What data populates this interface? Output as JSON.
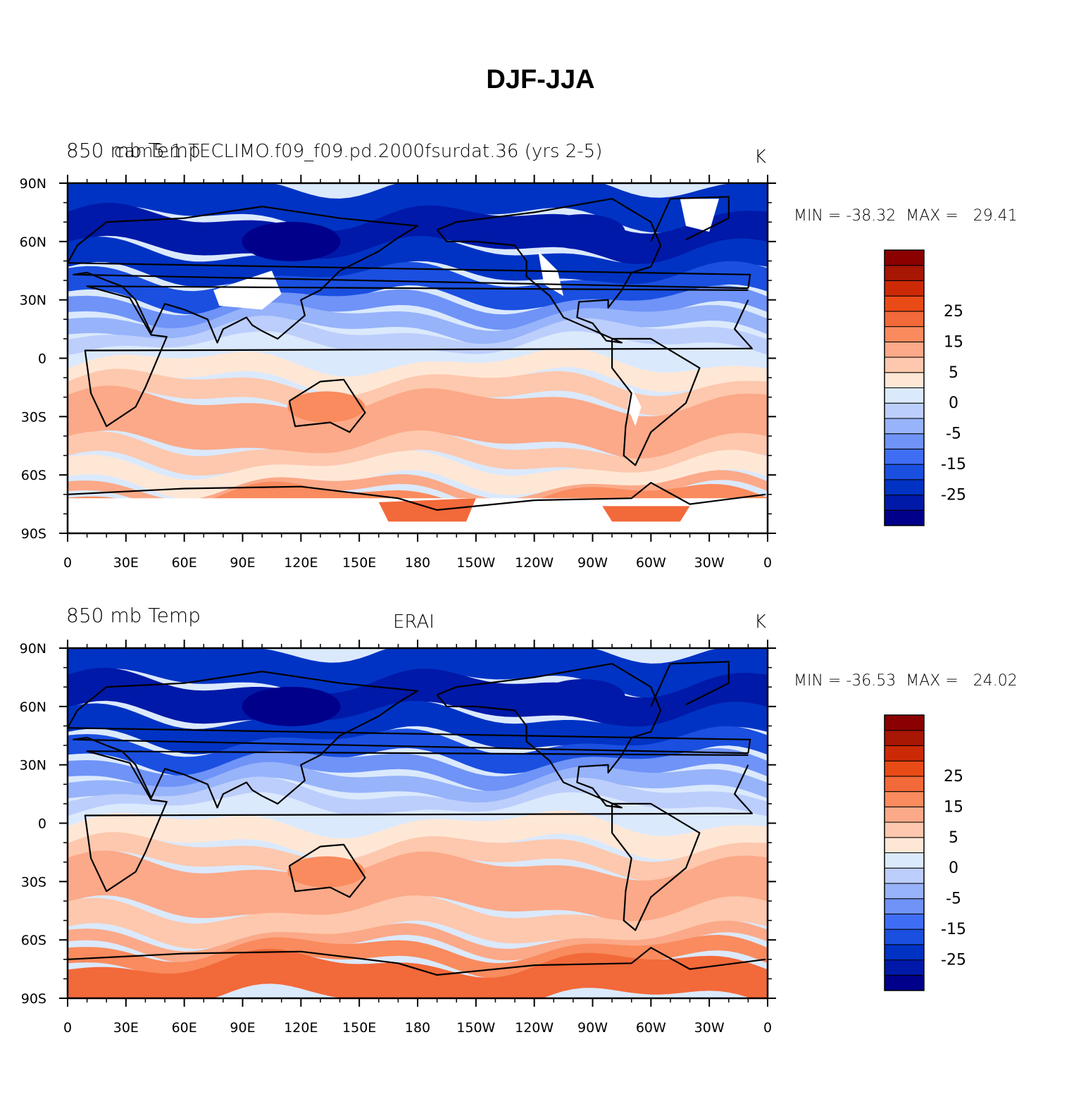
{
  "title": "DJF-JJA",
  "colorbar": {
    "colors": [
      "#00008b",
      "#0019a8",
      "#0033c4",
      "#1a4fe0",
      "#3f6ef5",
      "#6f93f7",
      "#97b3fa",
      "#bccefb",
      "#dbe9fd",
      "#ffe7d6",
      "#fdc8ad",
      "#fba988",
      "#f98b5e",
      "#f2693a",
      "#e94b17",
      "#cc2a06",
      "#a81604",
      "#8b0000"
    ],
    "labels": [
      "-25",
      "-15",
      "-5",
      "0",
      "5",
      "15",
      "25"
    ]
  },
  "longitude_labels": [
    "0",
    "30E",
    "60E",
    "90E",
    "120E",
    "150E",
    "180",
    "150W",
    "120W",
    "90W",
    "60W",
    "30W",
    "0"
  ],
  "latitude_labels": [
    "90N",
    "60N",
    "30N",
    "0",
    "30S",
    "60S",
    "90S"
  ],
  "panels": [
    {
      "left_title": "850 mb Temp",
      "center_title": "cam5.1.TECLIMO.f09_f09.pd.2000fsurdat.36 (yrs 2-5)",
      "right_title": "K",
      "min_max": "MIN = -38.32  MAX =   29.41",
      "min": -38.32,
      "max": 29.41
    },
    {
      "left_title": "850 mb Temp",
      "center_title": "ERAI",
      "right_title": "K",
      "min_max": "MIN = -36.53  MAX =   24.02",
      "min": -36.53,
      "max": 24.02
    }
  ]
}
